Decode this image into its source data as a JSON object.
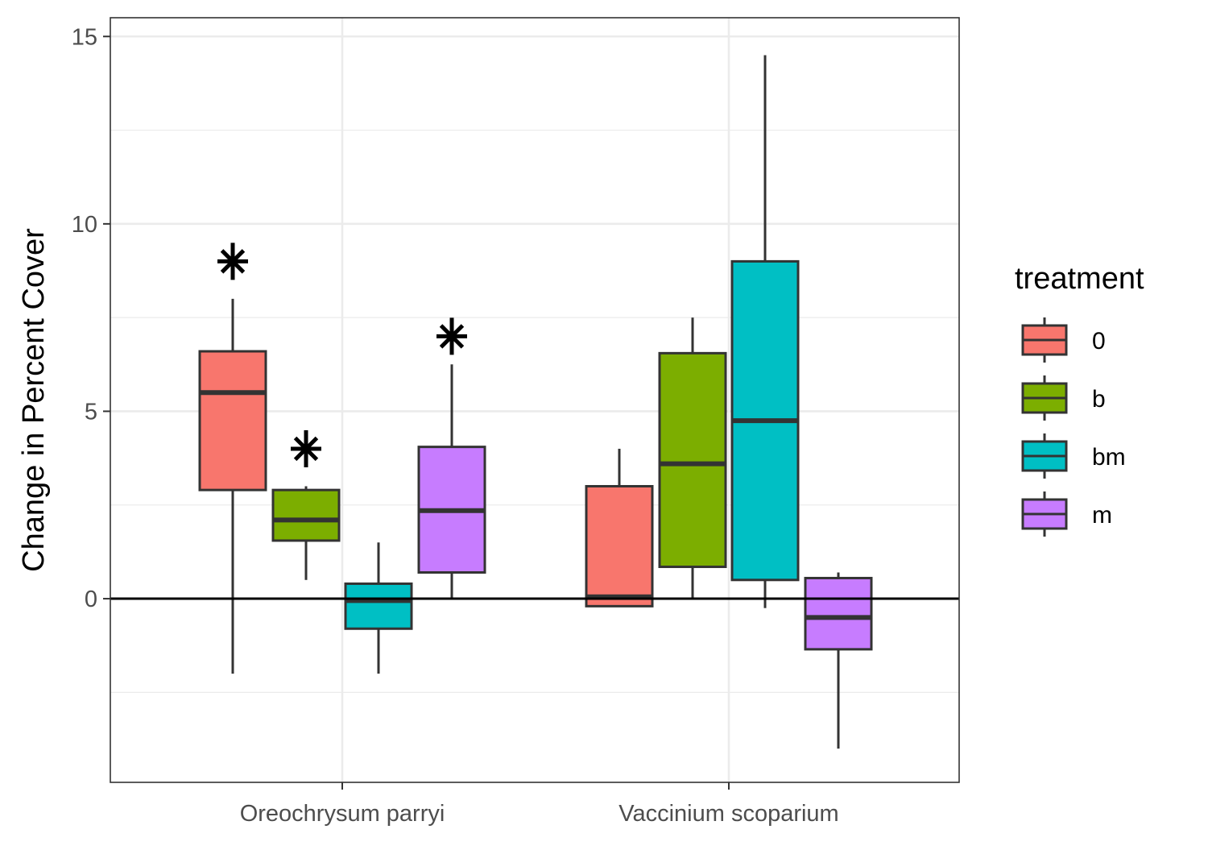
{
  "chart_data": {
    "type": "boxplot",
    "title": "",
    "xlabel": "",
    "ylabel": "Change in Percent Cover",
    "ylim": [
      -4.9,
      15.5
    ],
    "yticks": [
      0,
      5,
      10,
      15
    ],
    "y_minor_ticks": [
      -2.5,
      2.5,
      7.5,
      12.5
    ],
    "grid": true,
    "reference_line_y": 0,
    "categories": [
      "Oreochrysum parryi",
      "Vaccinium scoparium"
    ],
    "legend": {
      "title": "treatment",
      "position": "right"
    },
    "series": [
      {
        "name": "0",
        "color": "#F8766D",
        "boxes": [
          {
            "category": "Oreochrysum parryi",
            "whisker_low": -2.0,
            "q1": 2.9,
            "median": 5.5,
            "q3": 6.6,
            "whisker_high": 8.0,
            "outliers": [],
            "significance_marker_y": 9.0
          },
          {
            "category": "Vaccinium scoparium",
            "whisker_low": -0.2,
            "q1": -0.2,
            "median": 0.05,
            "q3": 3.0,
            "whisker_high": 4.0,
            "outliers": [],
            "significance_marker_y": null
          }
        ]
      },
      {
        "name": "b",
        "color": "#7CAE00",
        "boxes": [
          {
            "category": "Oreochrysum parryi",
            "whisker_low": 0.5,
            "q1": 1.55,
            "median": 2.1,
            "q3": 2.9,
            "whisker_high": 3.0,
            "outliers": [],
            "significance_marker_y": 4.0
          },
          {
            "category": "Vaccinium scoparium",
            "whisker_low": 0.0,
            "q1": 0.85,
            "median": 3.6,
            "q3": 6.55,
            "whisker_high": 7.5,
            "outliers": [],
            "significance_marker_y": null
          }
        ]
      },
      {
        "name": "bm",
        "color": "#00BFC4",
        "boxes": [
          {
            "category": "Oreochrysum parryi",
            "whisker_low": -2.0,
            "q1": -0.8,
            "median": -0.05,
            "q3": 0.4,
            "whisker_high": 1.5,
            "outliers": [],
            "significance_marker_y": null
          },
          {
            "category": "Vaccinium scoparium",
            "whisker_low": -0.25,
            "q1": 0.5,
            "median": 4.75,
            "q3": 9.0,
            "whisker_high": 14.5,
            "outliers": [],
            "significance_marker_y": null
          }
        ]
      },
      {
        "name": "m",
        "color": "#C77CFF",
        "boxes": [
          {
            "category": "Oreochrysum parryi",
            "whisker_low": 0.0,
            "q1": 0.7,
            "median": 2.35,
            "q3": 4.05,
            "whisker_high": 6.25,
            "outliers": [],
            "significance_marker_y": 7.0
          },
          {
            "category": "Vaccinium scoparium",
            "whisker_low": -4.0,
            "q1": -1.35,
            "median": -0.5,
            "q3": 0.55,
            "whisker_high": 0.7,
            "outliers": [],
            "significance_marker_y": null
          }
        ]
      }
    ]
  }
}
